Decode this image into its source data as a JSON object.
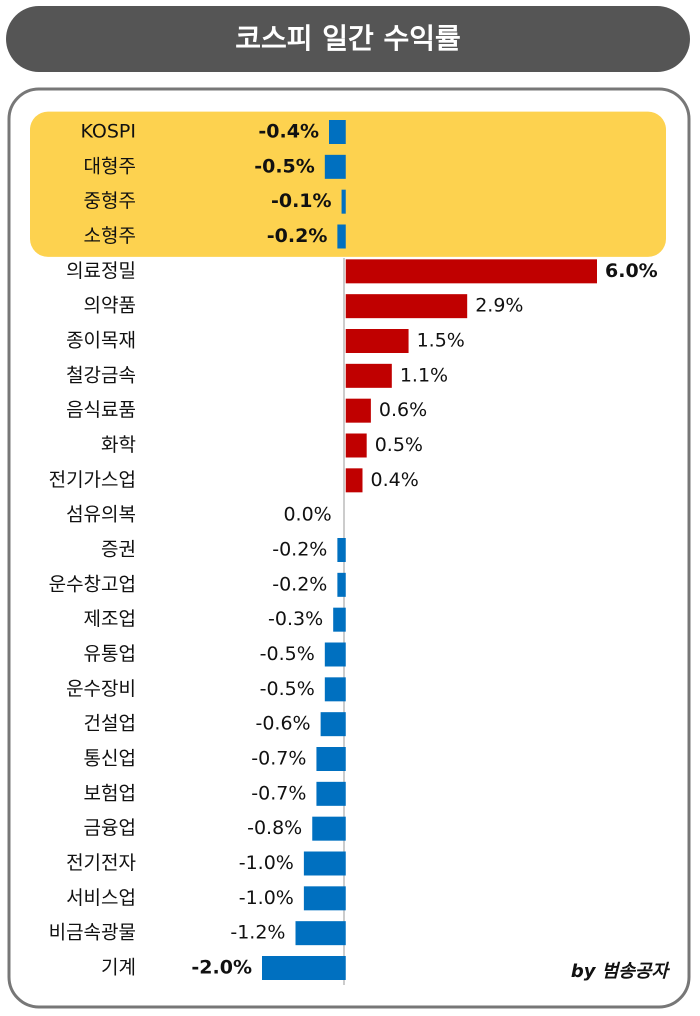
{
  "chart_data": {
    "type": "hbar",
    "title": "코스피 일간 수익률",
    "credit": "by 범송공자",
    "categories": [
      "KOSPI",
      "대형주",
      "중형주",
      "소형주",
      "의료정밀",
      "의약품",
      "종이목재",
      "철강금속",
      "음식료품",
      "화학",
      "전기가스업",
      "섬유의복",
      "증권",
      "운수창고업",
      "제조업",
      "유통업",
      "운수장비",
      "건설업",
      "통신업",
      "보험업",
      "금융업",
      "전기전자",
      "서비스업",
      "비금속광물",
      "기계"
    ],
    "values": [
      -0.4,
      -0.5,
      -0.1,
      -0.2,
      6.0,
      2.9,
      1.5,
      1.1,
      0.6,
      0.5,
      0.4,
      0.0,
      -0.2,
      -0.2,
      -0.3,
      -0.5,
      -0.5,
      -0.6,
      -0.7,
      -0.7,
      -0.8,
      -1.0,
      -1.0,
      -1.2,
      -2.0
    ],
    "value_labels": [
      "-0.4%",
      "-0.5%",
      "-0.1%",
      "-0.2%",
      "6.0%",
      "2.9%",
      "1.5%",
      "1.1%",
      "0.6%",
      "0.5%",
      "0.4%",
      "0.0%",
      "-0.2%",
      "-0.2%",
      "-0.3%",
      "-0.5%",
      "-0.5%",
      "-0.6%",
      "-0.7%",
      "-0.7%",
      "-0.8%",
      "-1.0%",
      "-1.0%",
      "-1.2%",
      "-2.0%"
    ],
    "xlim": [
      -2.0,
      6.0
    ],
    "positive_color": "#c00000",
    "negative_color": "#0070c0",
    "highlight_rows": 4,
    "highlight_color": "#fdd24f"
  }
}
